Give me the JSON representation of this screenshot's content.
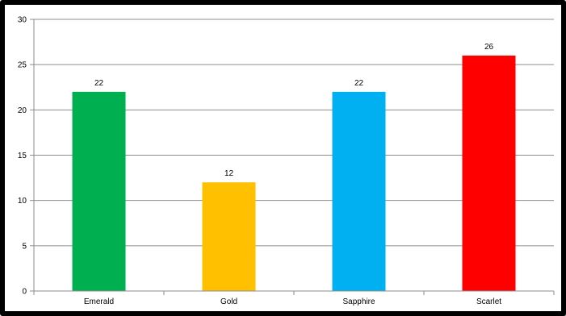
{
  "chart_data": {
    "type": "bar",
    "categories": [
      "Emerald",
      "Gold",
      "Sapphire",
      "Scarlet"
    ],
    "values": [
      22,
      12,
      22,
      26
    ],
    "colors": [
      "#00b050",
      "#ffc000",
      "#00b0f0",
      "#ff0000"
    ],
    "ylim": [
      0,
      30
    ],
    "yticks": [
      0,
      5,
      10,
      15,
      20,
      25,
      30
    ],
    "grid": true,
    "data_labels": true,
    "legend": "none"
  }
}
